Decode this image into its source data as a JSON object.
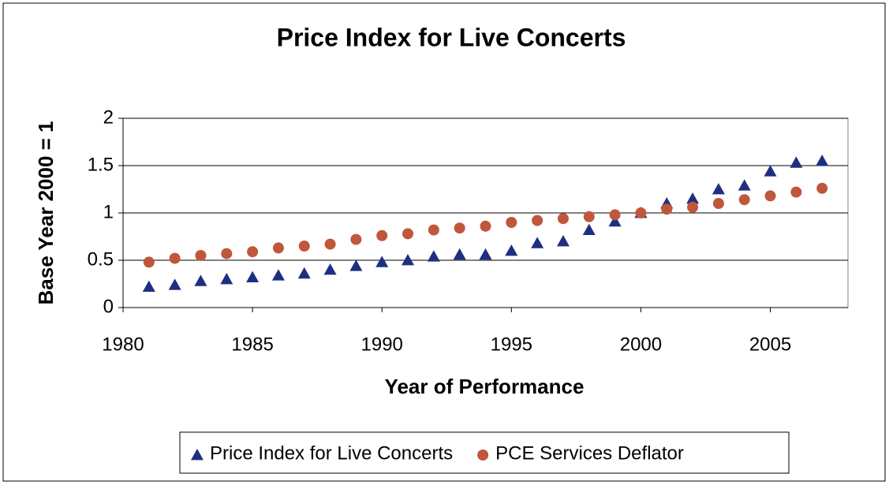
{
  "chart_data": {
    "type": "scatter",
    "title": "Price Index for Live Concerts",
    "x_label": "Year of Performance",
    "y_label": "Base Year 2000  = 1",
    "x": [
      1981,
      1982,
      1983,
      1984,
      1985,
      1986,
      1987,
      1988,
      1989,
      1990,
      1991,
      1992,
      1993,
      1994,
      1995,
      1996,
      1997,
      1998,
      1999,
      2000,
      2001,
      2002,
      2003,
      2004,
      2005,
      2006,
      2007
    ],
    "series": [
      {
        "name": "Price Index for Live Concerts",
        "color": "#1f2f80",
        "marker": "triangle",
        "values": [
          0.22,
          0.24,
          0.28,
          0.3,
          0.32,
          0.34,
          0.36,
          0.4,
          0.44,
          0.48,
          0.5,
          0.54,
          0.56,
          0.56,
          0.6,
          0.68,
          0.7,
          0.82,
          0.91,
          1.0,
          1.1,
          1.15,
          1.25,
          1.29,
          1.44,
          1.53,
          1.55
        ]
      },
      {
        "name": "PCE Services Deflator",
        "color": "#c0573a",
        "marker": "circle",
        "values": [
          0.48,
          0.52,
          0.55,
          0.57,
          0.59,
          0.63,
          0.65,
          0.67,
          0.72,
          0.76,
          0.78,
          0.82,
          0.84,
          0.86,
          0.9,
          0.92,
          0.94,
          0.96,
          0.98,
          1.0,
          1.04,
          1.06,
          1.1,
          1.14,
          1.18,
          1.22,
          1.26
        ]
      }
    ],
    "xlim": [
      1980,
      2008
    ],
    "xticks": [
      1980,
      1985,
      1990,
      1995,
      2000,
      2005
    ],
    "ylim": [
      0,
      2
    ],
    "yticks": [
      0,
      0.5,
      1,
      1.5,
      2
    ],
    "grid": true,
    "legend": "bottom"
  }
}
